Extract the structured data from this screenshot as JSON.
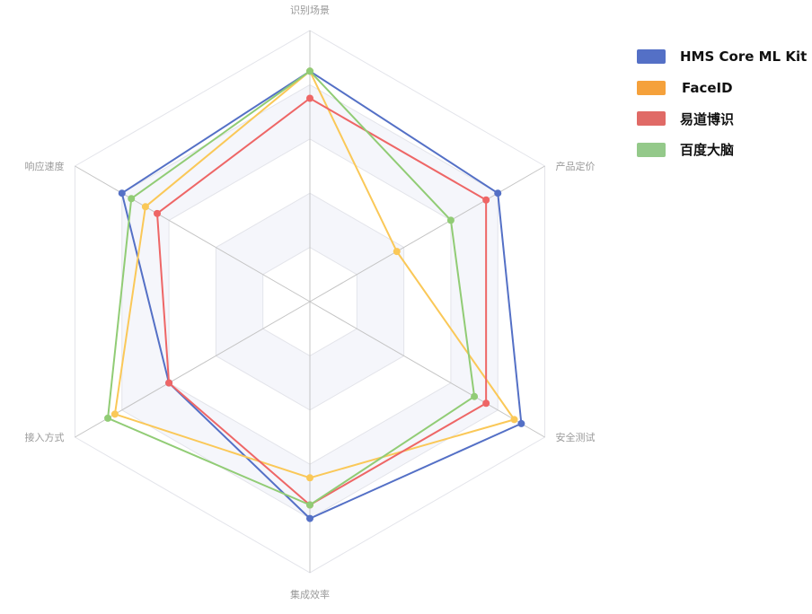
{
  "chart_data": {
    "type": "radar",
    "indicators": [
      "识别场景",
      "产品定价",
      "安全测试",
      "集成效率",
      "接入方式",
      "响应速度"
    ],
    "max": 100,
    "split_number": 5,
    "series": [
      {
        "name": "HMS Core ML Kit",
        "values": [
          85,
          80,
          90,
          80,
          60,
          80
        ],
        "color": "#5470c6"
      },
      {
        "name": "FaceID",
        "values": [
          85,
          37,
          87,
          65,
          83,
          70
        ],
        "color": "#fac858"
      },
      {
        "name": "易道博识",
        "values": [
          75,
          75,
          75,
          75,
          60,
          65
        ],
        "color": "#ee6666"
      },
      {
        "name": "百度大脑",
        "values": [
          85,
          60,
          70,
          75,
          86,
          76
        ],
        "color": "#91cc75"
      }
    ],
    "legend": {
      "position": "top-right",
      "items": [
        {
          "label": "HMS Core ML Kit",
          "color": "#5470c6"
        },
        {
          "label": "FaceID",
          "color": "#f5a13b"
        },
        {
          "label": "易道博识",
          "color": "#e06a66"
        },
        {
          "label": "百度大脑",
          "color": "#94c98a"
        }
      ]
    },
    "grid": true
  }
}
